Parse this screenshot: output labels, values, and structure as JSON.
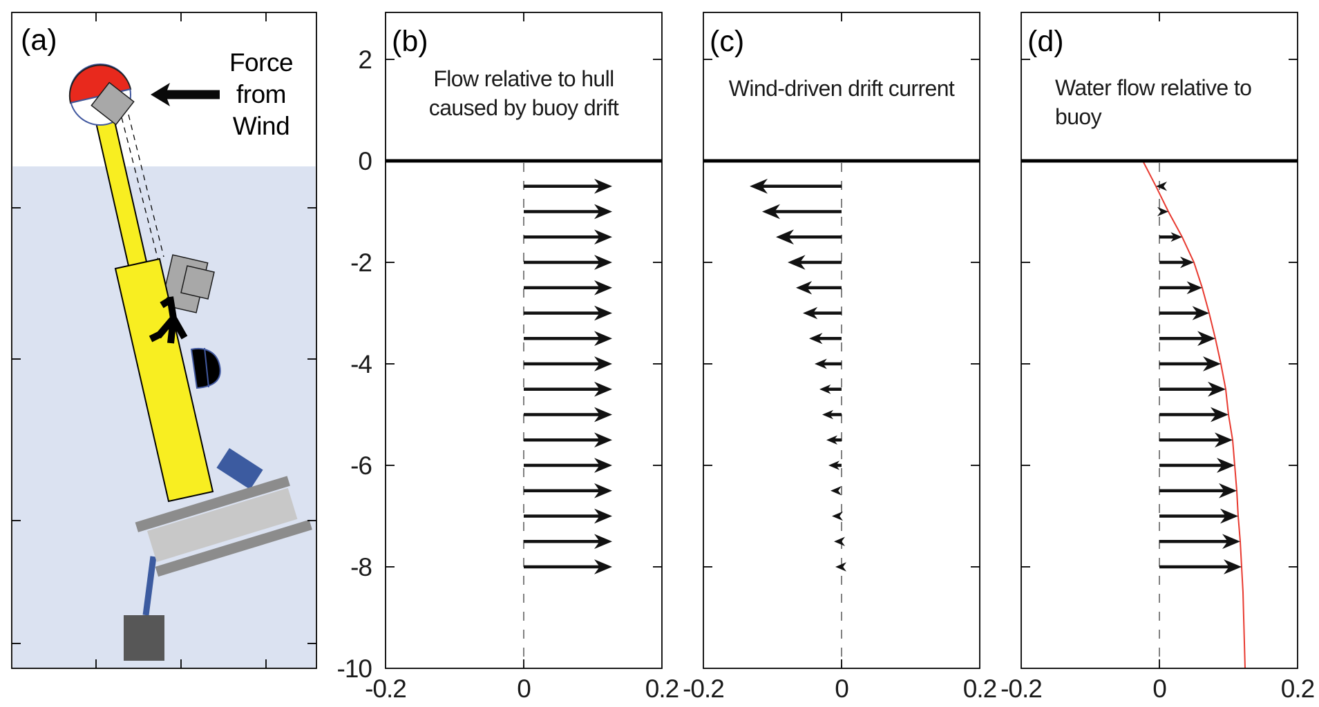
{
  "figure": {
    "background": "#ffffff",
    "panel_a": {
      "label": "(a)",
      "wind_annotation": [
        "Force",
        "from",
        "Wind"
      ],
      "colors": {
        "water": "#dbe2f1",
        "hull_yellow": "#f8ee21",
        "float_red": "#e8291d",
        "rope_blue": "#3c5ba0",
        "outline_blue": "#41589f",
        "instrument_gray": "#a8a8a8",
        "cage_light_gray": "#c8c8c8",
        "cage_dark_gray": "#8c8c8c",
        "anchor_gray": "#575757"
      }
    }
  },
  "chart_style": {
    "arrow_color": "#111111",
    "zero_line_color": "#808080",
    "surface_line_color": "#000000",
    "curve_color": "#e8392f"
  },
  "chart_data": [
    {
      "id": "b",
      "type": "quiver-profile",
      "label": "(b)",
      "title_lines": [
        "Flow relative to hull",
        "caused by buoy drift"
      ],
      "title_align": "middle",
      "xlim": [
        -0.2,
        0.2
      ],
      "ylim": [
        -10,
        3
      ],
      "x_ticks": [
        {
          "label": "-0.2",
          "value": -0.2
        },
        {
          "label": "0",
          "value": 0
        },
        {
          "label": "0.2",
          "value": 0.2
        }
      ],
      "y_tick_values": [
        2,
        0,
        -2,
        -4,
        -6,
        -8,
        -10
      ],
      "y_tick_labels": [
        "2",
        "0",
        "-2",
        "-4",
        "-6",
        "-8",
        "-10"
      ],
      "surface_at": 0,
      "depths": [
        -0.5,
        -1.0,
        -1.5,
        -2.0,
        -2.5,
        -3.0,
        -3.5,
        -4.0,
        -4.5,
        -5.0,
        -5.5,
        -6.0,
        -6.5,
        -7.0,
        -7.5,
        -8.0
      ],
      "u": [
        0.128,
        0.128,
        0.128,
        0.128,
        0.128,
        0.128,
        0.128,
        0.128,
        0.128,
        0.128,
        0.128,
        0.128,
        0.128,
        0.128,
        0.128,
        0.128
      ]
    },
    {
      "id": "c",
      "type": "quiver-profile",
      "label": "(c)",
      "title_lines": [
        "Wind-driven drift current"
      ],
      "title_align": "middle",
      "xlim": [
        -0.2,
        0.2
      ],
      "ylim": [
        -10,
        3
      ],
      "x_ticks": [
        {
          "label": "-0.2",
          "value": -0.2
        },
        {
          "label": "0",
          "value": 0
        },
        {
          "label": "0.2",
          "value": 0.2
        }
      ],
      "y_tick_values": [
        2,
        0,
        -2,
        -4,
        -6,
        -8,
        -10
      ],
      "y_tick_labels": null,
      "surface_at": 0,
      "depths": [
        -0.5,
        -1.0,
        -1.5,
        -2.0,
        -2.5,
        -3.0,
        -3.5,
        -4.0,
        -4.5,
        -5.0,
        -5.5,
        -6.0,
        -6.5,
        -7.0,
        -7.5,
        -8.0
      ],
      "u": [
        -0.133,
        -0.115,
        -0.095,
        -0.078,
        -0.066,
        -0.056,
        -0.047,
        -0.039,
        -0.032,
        -0.028,
        -0.022,
        -0.019,
        -0.016,
        -0.014,
        -0.011,
        -0.009
      ]
    },
    {
      "id": "d",
      "type": "quiver-profile",
      "label": "(d)",
      "title_lines": [
        "Water flow relative to",
        "buoy"
      ],
      "title_align": "start",
      "xlim": [
        -0.2,
        0.2
      ],
      "ylim": [
        -10,
        3
      ],
      "x_ticks": [
        {
          "label": "-0.2",
          "value": -0.2
        },
        {
          "label": "0",
          "value": 0
        },
        {
          "label": "0.2",
          "value": 0.2
        }
      ],
      "y_tick_values": [
        2,
        0,
        -2,
        -4,
        -6,
        -8,
        -10
      ],
      "y_tick_labels": null,
      "surface_at": 0,
      "depths": [
        -0.5,
        -1.0,
        -1.5,
        -2.0,
        -2.5,
        -3.0,
        -3.5,
        -4.0,
        -4.5,
        -5.0,
        -5.5,
        -6.0,
        -6.5,
        -7.0,
        -7.5,
        -8.0
      ],
      "u": [
        -0.005,
        0.013,
        0.033,
        0.05,
        0.062,
        0.072,
        0.081,
        0.089,
        0.096,
        0.1,
        0.106,
        0.109,
        0.112,
        0.114,
        0.117,
        0.119
      ],
      "curve": {
        "color": "#e8392f",
        "points": [
          [
            0,
            -0.024
          ],
          [
            -0.5,
            -0.005
          ],
          [
            -1,
            0.013
          ],
          [
            -1.5,
            0.033
          ],
          [
            -2,
            0.05
          ],
          [
            -2.5,
            0.062
          ],
          [
            -3,
            0.072
          ],
          [
            -3.5,
            0.081
          ],
          [
            -4,
            0.089
          ],
          [
            -4.5,
            0.096
          ],
          [
            -5,
            0.1
          ],
          [
            -5.5,
            0.106
          ],
          [
            -6,
            0.109
          ],
          [
            -6.5,
            0.112
          ],
          [
            -7,
            0.114
          ],
          [
            -7.5,
            0.117
          ],
          [
            -8,
            0.119
          ],
          [
            -8.5,
            0.121
          ],
          [
            -9,
            0.122
          ],
          [
            -9.5,
            0.123
          ],
          [
            -10,
            0.124
          ]
        ]
      }
    }
  ]
}
